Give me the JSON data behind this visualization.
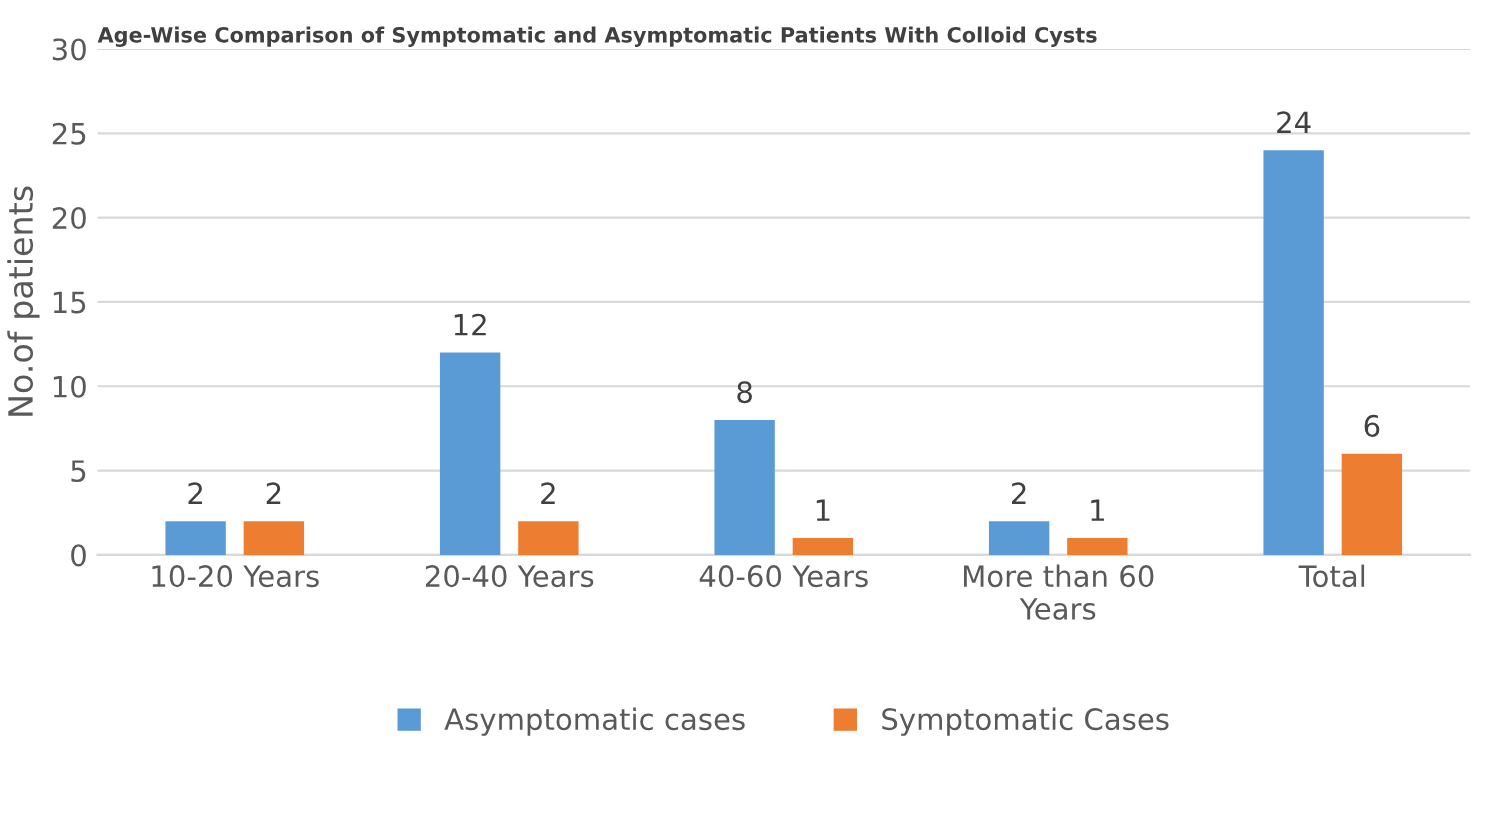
{
  "chart_data": {
    "type": "bar",
    "title": "Age-Wise Comparison of Symptomatic and Asymptomatic Patients With Colloid Cysts",
    "ylabel": "No.of patients",
    "categories": [
      "10-20 Years",
      "20-40 Years",
      "40-60 Years",
      "More than 60\nYears",
      "Total"
    ],
    "series": [
      {
        "name": "Asymptomatic cases",
        "color": "#5b9bd5",
        "values": [
          2,
          12,
          8,
          2,
          24
        ]
      },
      {
        "name": "Symptomatic Cases",
        "color": "#ed7d31",
        "values": [
          2,
          2,
          1,
          1,
          6
        ]
      }
    ],
    "ylim": [
      0,
      30
    ],
    "yticks": [
      0,
      5,
      10,
      15,
      20,
      25,
      30
    ],
    "grid": "y",
    "legend": "bottom",
    "data_labels": true
  }
}
